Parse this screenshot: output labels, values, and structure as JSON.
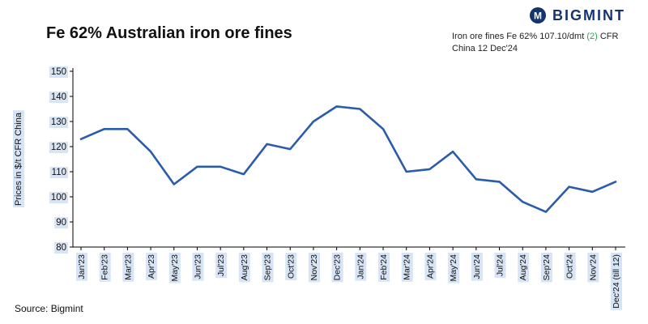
{
  "header": {
    "logo_text": "BIGMINT",
    "logo_monogram": "M",
    "title": "Fe 62% Australian iron ore fines",
    "annotation": {
      "pre": "Iron ore fines Fe 62% 107.10/dmt ",
      "highlight": "(2)",
      "post": " CFR",
      "line2": "China 12 Dec'24"
    }
  },
  "colors": {
    "line": "#2a5caa",
    "accent_green": "#2e9e4f",
    "brand_navy": "#14346e",
    "tick_label_bg": "#d6e4f5"
  },
  "chart_data": {
    "type": "line",
    "title": "Fe 62% Australian iron ore fines",
    "xlabel": "",
    "ylabel": "Prices in $/t CFR China",
    "ylim": [
      80,
      150
    ],
    "yticks": [
      80,
      90,
      100,
      110,
      120,
      130,
      140,
      150
    ],
    "grid": false,
    "legend": "none",
    "categories": [
      "Jan'23",
      "Feb'23",
      "Mar'23",
      "Apr'23",
      "May'23",
      "Jun'23",
      "Jul'23",
      "Aug'23",
      "Sep'23",
      "Oct'23",
      "Nov'23",
      "Dec'23",
      "Jan'24",
      "Feb'24",
      "Mar'24",
      "Apr'24",
      "May'24",
      "Jun'24",
      "Jul'24",
      "Aug'24",
      "Sep'24",
      "Oct'24",
      "Nov'24",
      "Dec'24 (till 12)"
    ],
    "values": [
      123,
      127,
      127,
      118,
      105,
      112,
      112,
      109,
      121,
      119,
      130,
      136,
      135,
      127,
      110,
      111,
      118,
      107,
      106,
      98,
      94,
      104,
      102,
      106
    ]
  },
  "footer": {
    "source": "Source: Bigmint"
  }
}
